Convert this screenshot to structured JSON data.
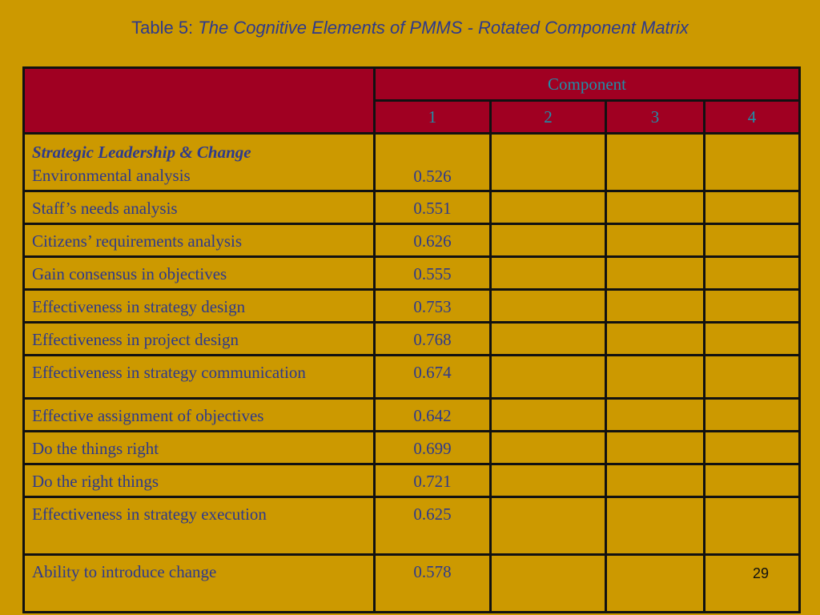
{
  "title": {
    "label": "Table 5:",
    "text": "The Cognitive Elements of PMMS - Rotated Component Matrix"
  },
  "table": {
    "component_header": "Component",
    "columns": [
      "1",
      "2",
      "3",
      "4"
    ],
    "section_title": "Strategic Leadership & Change",
    "rows": [
      {
        "item": "Environmental analysis",
        "c1": "0.526"
      },
      {
        "item": "Staff’s needs analysis",
        "c1": "0.551"
      },
      {
        "item": "Citizens’ requirements analysis",
        "c1": "0.626"
      },
      {
        "item": "Gain consensus in objectives",
        "c1": "0.555"
      },
      {
        "item": "Effectiveness in strategy design",
        "c1": "0.753"
      },
      {
        "item": "Effectiveness in project design",
        "c1": "0.768"
      },
      {
        "item": "Effectiveness in strategy communication",
        "c1": "0.674"
      },
      {
        "item": "Effective assignment of  objectives",
        "c1": "0.642"
      },
      {
        "item": "Do the things right",
        "c1": "0.699"
      },
      {
        "item": "Do the right things",
        "c1": "0.721"
      },
      {
        "item": "Effectiveness in strategy execution",
        "c1": "0.625"
      },
      {
        "item": "Ability to introduce change",
        "c1": "0.578"
      }
    ]
  },
  "page_number": "29",
  "colors": {
    "background": "#cc9900",
    "header_fill": "#a00022",
    "header_text": "#1f8fa8",
    "body_text": "#2e3a8c"
  }
}
